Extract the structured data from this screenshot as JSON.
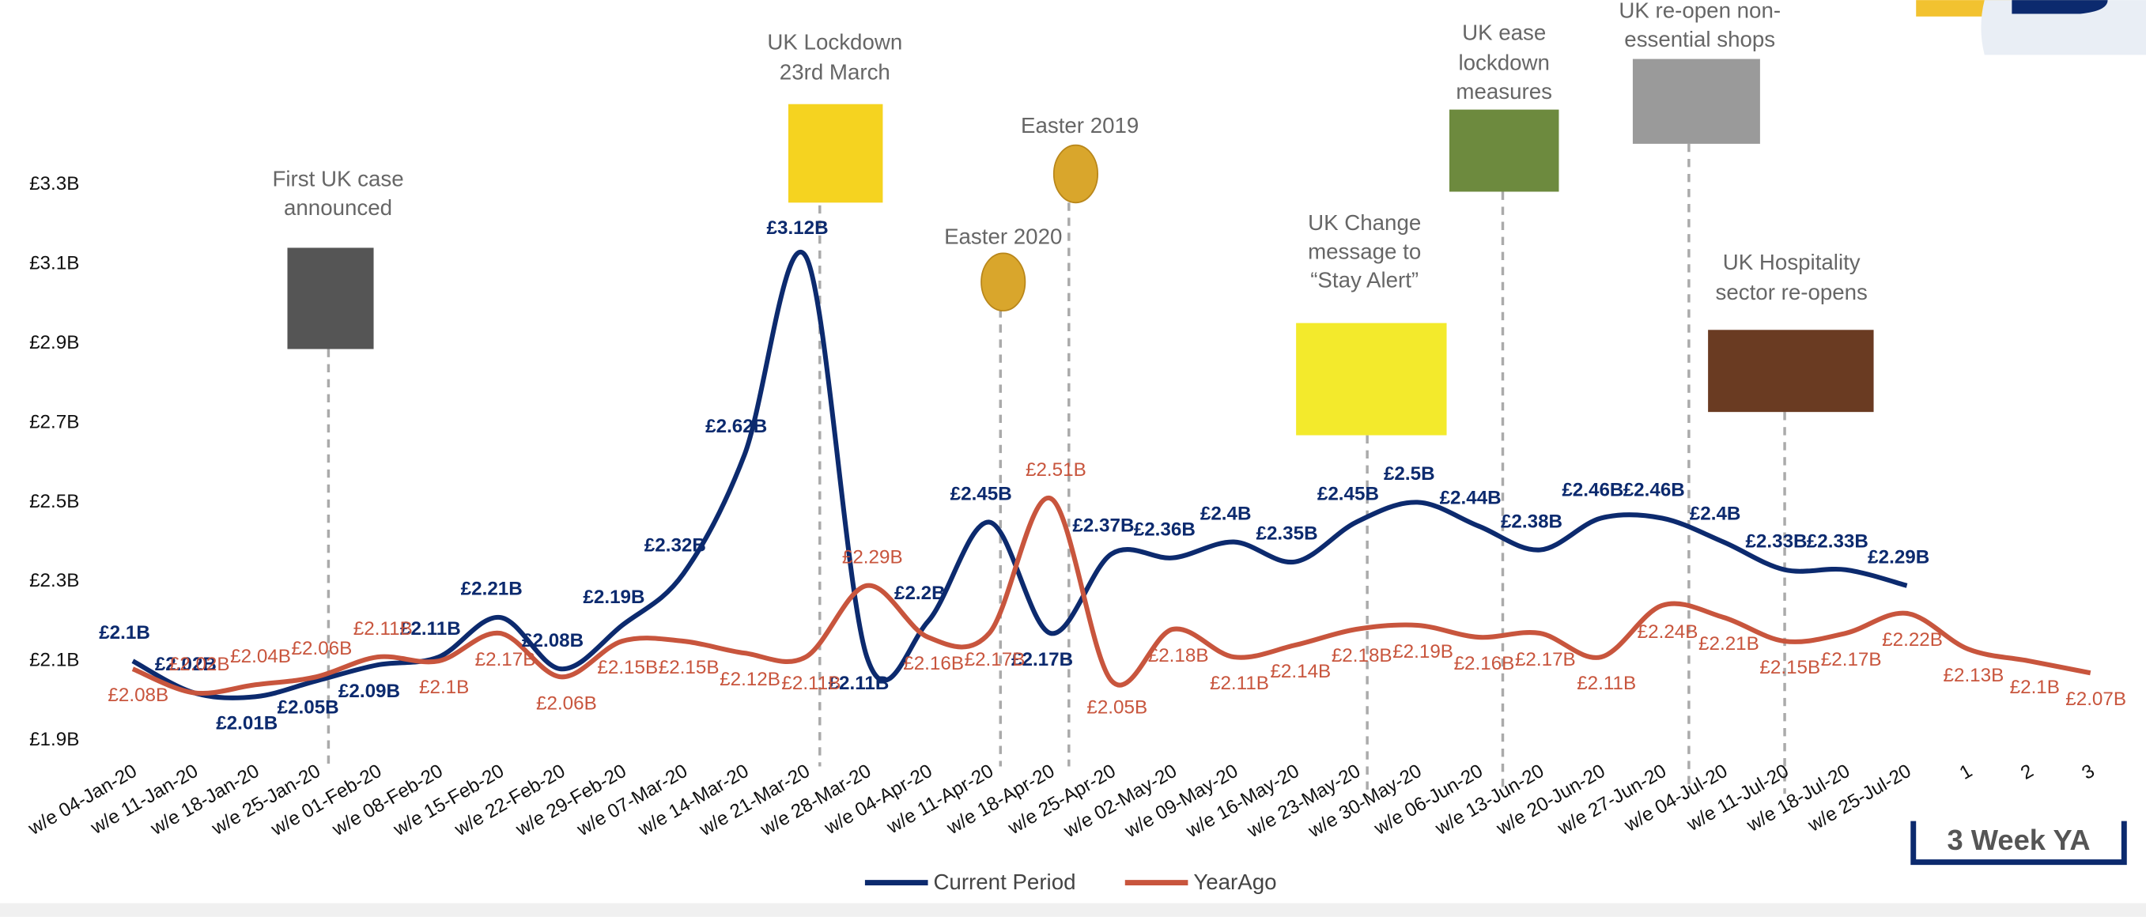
{
  "chart_data": {
    "type": "line",
    "categories": [
      "w/e 04-Jan-20",
      "w/e 11-Jan-20",
      "w/e 18-Jan-20",
      "w/e 25-Jan-20",
      "w/e 01-Feb-20",
      "w/e 08-Feb-20",
      "w/e 15-Feb-20",
      "w/e 22-Feb-20",
      "w/e 29-Feb-20",
      "w/e 07-Mar-20",
      "w/e 14-Mar-20",
      "w/e 21-Mar-20",
      "w/e 28-Mar-20",
      "w/e 04-Apr-20",
      "w/e 11-Apr-20",
      "w/e 18-Apr-20",
      "w/e 25-Apr-20",
      "w/e 02-May-20",
      "w/e 09-May-20",
      "w/e 16-May-20",
      "w/e 23-May-20",
      "w/e 30-May-20",
      "w/e 06-Jun-20",
      "w/e 13-Jun-20",
      "w/e 20-Jun-20",
      "w/e 27-Jun-20",
      "w/e 04-Jul-20",
      "w/e 11-Jul-20",
      "w/e 18-Jul-20",
      "w/e 25-Jul-20",
      "1",
      "2",
      "3"
    ],
    "series": [
      {
        "name": "Current Period",
        "color": "#0c2a6e",
        "values": [
          2.1,
          2.02,
          2.01,
          2.05,
          2.09,
          2.11,
          2.21,
          2.08,
          2.19,
          2.32,
          2.62,
          3.12,
          2.11,
          2.2,
          2.45,
          2.17,
          2.37,
          2.36,
          2.4,
          2.35,
          2.45,
          2.5,
          2.44,
          2.38,
          2.46,
          2.46,
          2.4,
          2.33,
          2.33,
          2.29,
          null,
          null,
          null
        ],
        "value_labels": [
          "£2.1B",
          "£2.02B",
          "£2.01B",
          "£2.05B",
          "£2.09B",
          "£2.11B",
          "£2.21B",
          "£2.08B",
          "£2.19B",
          "£2.32B",
          "£2.62B",
          "£3.12B",
          "£2.11B",
          "£2.2B",
          "£2.45B",
          "£2.17B",
          "£2.37B",
          "£2.36B",
          "£2.4B",
          "£2.35B",
          "£2.45B",
          "£2.5B",
          "£2.44B",
          "£2.38B",
          "£2.46B",
          "£2.46B",
          "£2.4B",
          "£2.33B",
          "£2.33B",
          "£2.29B",
          null,
          null,
          null
        ]
      },
      {
        "name": "YearAgo",
        "color": "#c8553d",
        "values": [
          2.08,
          2.02,
          2.04,
          2.06,
          2.11,
          2.1,
          2.17,
          2.06,
          2.15,
          2.15,
          2.12,
          2.11,
          2.29,
          2.16,
          2.17,
          2.51,
          2.05,
          2.18,
          2.11,
          2.14,
          2.18,
          2.19,
          2.16,
          2.17,
          2.11,
          2.24,
          2.21,
          2.15,
          2.17,
          2.22,
          2.13,
          2.1,
          2.07
        ],
        "value_labels": [
          "£2.08B",
          "£2.02B",
          "£2.04B",
          "£2.06B",
          "£2.11B",
          "£2.1B",
          "£2.17B",
          "£2.06B",
          "£2.15B",
          "£2.15B",
          "£2.12B",
          "£2.11B",
          "£2.29B",
          "£2.16B",
          "£2.17B",
          "£2.51B",
          "£2.05B",
          "£2.18B",
          "£2.11B",
          "£2.14B",
          "£2.18B",
          "£2.19B",
          "£2.16B",
          "£2.17B",
          "£2.11B",
          "£2.24B",
          "£2.21B",
          "£2.15B",
          "£2.17B",
          "£2.22B",
          "£2.13B",
          "£2.1B",
          "£2.07B"
        ]
      }
    ],
    "ylim": [
      1.9,
      3.3
    ],
    "yticks": [
      {
        "value": 1.9,
        "label": "£1.9B"
      },
      {
        "value": 2.1,
        "label": "£2.1B"
      },
      {
        "value": 2.3,
        "label": "£2.3B"
      },
      {
        "value": 2.5,
        "label": "£2.5B"
      },
      {
        "value": 2.7,
        "label": "£2.7B"
      },
      {
        "value": 2.9,
        "label": "£2.9B"
      },
      {
        "value": 3.1,
        "label": "£3.1B"
      },
      {
        "value": 3.3,
        "label": "£3.3B"
      }
    ],
    "annotations": [
      {
        "lines": [
          "First UK case",
          "announced"
        ]
      },
      {
        "lines": [
          "UK Lockdown",
          "23rd March"
        ]
      },
      {
        "lines": [
          "Easter 2020"
        ]
      },
      {
        "lines": [
          "Easter 2019"
        ]
      },
      {
        "lines": [
          "UK Change",
          "message to",
          "“Stay Alert”"
        ]
      },
      {
        "lines": [
          "UK ease",
          "lockdown",
          "measures"
        ]
      },
      {
        "lines": [
          "UK re-open non-",
          "essential shops"
        ]
      },
      {
        "lines": [
          "UK Hospitality",
          "sector re-opens"
        ]
      }
    ],
    "period_box": "3 Week YA"
  }
}
